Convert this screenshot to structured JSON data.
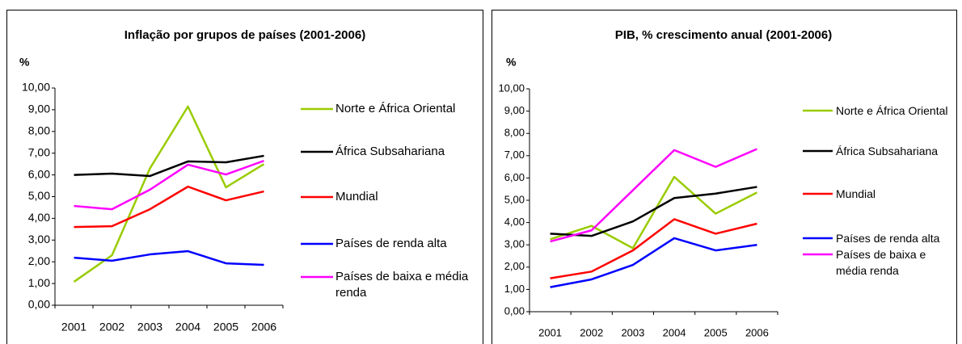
{
  "chart_data": [
    {
      "type": "line",
      "title": "Inflação por grupos de países (2001-2006)",
      "y_label": "%",
      "categories": [
        "2001",
        "2002",
        "2003",
        "2004",
        "2005",
        "2006"
      ],
      "ylim": [
        0,
        10
      ],
      "yticks": [
        {
          "value": 0,
          "label": "0,00"
        },
        {
          "value": 1,
          "label": "1,00"
        },
        {
          "value": 2,
          "label": "2,00"
        },
        {
          "value": 3,
          "label": "3,00"
        },
        {
          "value": 4,
          "label": "4,00"
        },
        {
          "value": 5,
          "label": "5,00"
        },
        {
          "value": 6,
          "label": "6,00"
        },
        {
          "value": 7,
          "label": "7,00"
        },
        {
          "value": 8,
          "label": "8,00"
        },
        {
          "value": 9,
          "label": "9,00"
        },
        {
          "value": 10,
          "label": "10,00"
        }
      ],
      "series": [
        {
          "name": "Norte e África Oriental",
          "color": "#99cc00",
          "values": [
            1.08,
            2.3,
            6.3,
            9.15,
            5.43,
            6.5
          ]
        },
        {
          "name": "África Subsahariana",
          "color": "#000000",
          "values": [
            6.0,
            6.06,
            5.95,
            6.62,
            6.58,
            6.88
          ]
        },
        {
          "name": "Mundial",
          "color": "#ff0000",
          "values": [
            3.6,
            3.64,
            4.42,
            5.46,
            4.83,
            5.24
          ]
        },
        {
          "name": "Países de renda alta",
          "color": "#0000ff",
          "values": [
            2.19,
            2.05,
            2.34,
            2.49,
            1.93,
            1.86
          ]
        },
        {
          "name": "Países de baixa e média renda",
          "color": "#ff00ff",
          "values": [
            4.57,
            4.42,
            5.32,
            6.47,
            6.02,
            6.65
          ]
        }
      ]
    },
    {
      "type": "line",
      "title": "PIB, % crescimento anual (2001-2006)",
      "y_label": "%",
      "categories": [
        "2001",
        "2002",
        "2003",
        "2004",
        "2005",
        "2006"
      ],
      "ylim": [
        0,
        10
      ],
      "yticks": [
        {
          "value": 0,
          "label": "0,00"
        },
        {
          "value": 1,
          "label": "1,00"
        },
        {
          "value": 2,
          "label": "2,00"
        },
        {
          "value": 3,
          "label": "3,00"
        },
        {
          "value": 4,
          "label": "4,00"
        },
        {
          "value": 5,
          "label": "5,00"
        },
        {
          "value": 6,
          "label": "6,00"
        },
        {
          "value": 7,
          "label": "7,00"
        },
        {
          "value": 8,
          "label": "8,00"
        },
        {
          "value": 9,
          "label": "9,00"
        },
        {
          "value": 10,
          "label": "10,00"
        }
      ],
      "series": [
        {
          "name": "Norte e África Oriental",
          "color": "#99cc00",
          "values": [
            3.25,
            3.85,
            2.85,
            6.05,
            4.4,
            5.35
          ]
        },
        {
          "name": "África Subsahariana",
          "color": "#000000",
          "values": [
            3.5,
            3.4,
            4.05,
            5.1,
            5.3,
            5.6
          ]
        },
        {
          "name": "Mundial",
          "color": "#ff0000",
          "values": [
            1.5,
            1.8,
            2.75,
            4.15,
            3.5,
            3.95
          ]
        },
        {
          "name": "Países de renda alta",
          "color": "#0000ff",
          "values": [
            1.1,
            1.45,
            2.1,
            3.3,
            2.75,
            3.0
          ]
        },
        {
          "name": "Países de baixa e média renda",
          "color": "#ff00ff",
          "values": [
            3.15,
            3.65,
            5.45,
            7.25,
            6.5,
            7.3
          ]
        }
      ]
    }
  ]
}
